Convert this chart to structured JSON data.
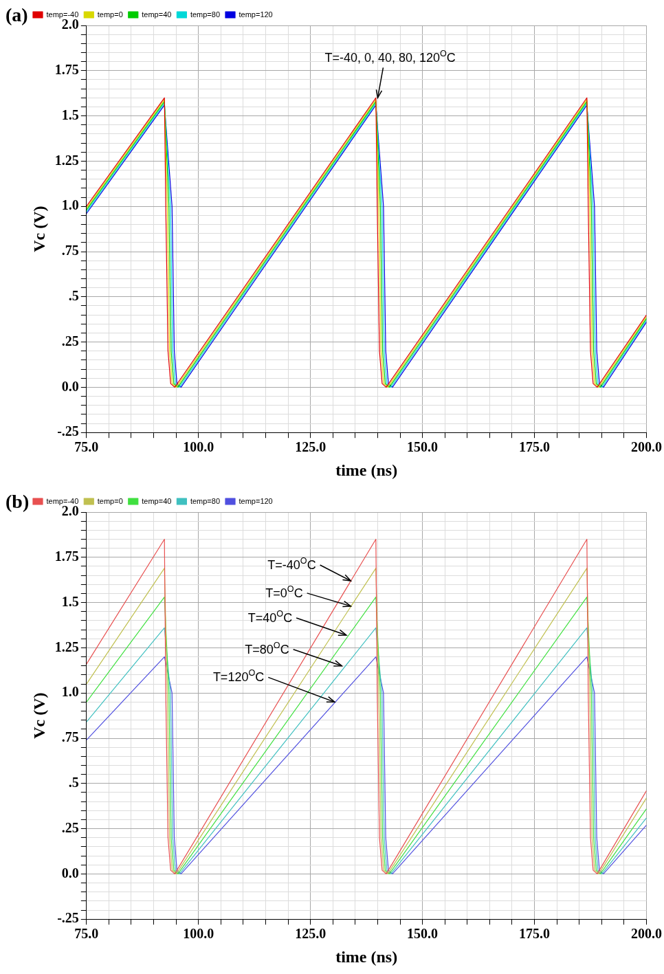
{
  "chart_data": [
    {
      "type": "line",
      "title": "(a)",
      "xlabel": "time (ns)",
      "ylabel": "Vc (V)",
      "legend": "top left",
      "grid": true,
      "marker": "none",
      "line_style": "solid",
      "series": [
        {
          "name": "temp=-40",
          "color": "#e00000",
          "x": [
            75,
            92.4,
            92.7,
            93.2,
            93.8,
            94.7,
            139.6,
            139.9,
            140.4,
            141,
            141.9,
            186.7,
            187,
            187.5,
            188.1,
            189,
            200
          ],
          "values": [
            1.0,
            1.6,
            1.0,
            0.2,
            0.02,
            0,
            1.6,
            1.0,
            0.2,
            0.02,
            0,
            1.6,
            1.0,
            0.2,
            0.02,
            0,
            0.4
          ]
        },
        {
          "name": "temp=0",
          "color": "#d8d800",
          "x": [
            75,
            92.4,
            93.05,
            93.55,
            94.15,
            95.05,
            139.6,
            140.25,
            140.75,
            141.35,
            142.25,
            186.7,
            187.35,
            187.85,
            188.45,
            189.35,
            200
          ],
          "values": [
            0.99,
            1.59,
            1.0,
            0.2,
            0.02,
            0,
            1.59,
            1.0,
            0.2,
            0.02,
            0,
            1.59,
            1.0,
            0.2,
            0.02,
            0,
            0.39
          ]
        },
        {
          "name": "temp=40",
          "color": "#00cc00",
          "x": [
            75,
            92.4,
            93.4,
            93.9,
            94.5,
            95.4,
            139.6,
            140.6,
            141.1,
            141.7,
            142.6,
            186.7,
            187.7,
            188.2,
            188.8,
            189.7,
            200
          ],
          "values": [
            0.98,
            1.58,
            1.0,
            0.2,
            0.02,
            0,
            1.58,
            1.0,
            0.2,
            0.02,
            0,
            1.58,
            1.0,
            0.2,
            0.02,
            0,
            0.38
          ]
        },
        {
          "name": "temp=80",
          "color": "#00d8d8",
          "x": [
            75,
            92.4,
            93.75,
            94.25,
            94.85,
            95.75,
            139.6,
            140.95,
            141.45,
            142.05,
            142.95,
            186.7,
            188.05,
            188.55,
            189.15,
            190.05,
            200
          ],
          "values": [
            0.97,
            1.57,
            1.0,
            0.2,
            0.02,
            0,
            1.57,
            1.0,
            0.2,
            0.02,
            0,
            1.57,
            1.0,
            0.2,
            0.02,
            0,
            0.37
          ]
        },
        {
          "name": "temp=120",
          "color": "#0000e0",
          "x": [
            75,
            92.4,
            94.1,
            94.6,
            95.2,
            96.1,
            139.6,
            141.3,
            141.8,
            142.4,
            143.3,
            186.7,
            188.4,
            188.9,
            189.5,
            190.4,
            200
          ],
          "values": [
            0.96,
            1.56,
            1.0,
            0.2,
            0.02,
            0,
            1.56,
            1.0,
            0.2,
            0.02,
            0,
            1.56,
            1.0,
            0.2,
            0.02,
            0,
            0.36
          ]
        }
      ],
      "annotations": [
        {
          "text": "T=-40, 0, 40, 80, 120$^{O}$C",
          "x": 140,
          "y": 1.6
        }
      ],
      "xlim": [
        75,
        200
      ],
      "xticks": [
        {
          "value": 75,
          "label": "75.0"
        },
        {
          "value": 80,
          "label": null
        },
        {
          "value": 85,
          "label": null
        },
        {
          "value": 90,
          "label": null
        },
        {
          "value": 95,
          "label": null
        },
        {
          "value": 100,
          "label": "100.0"
        },
        {
          "value": 105,
          "label": null
        },
        {
          "value": 110,
          "label": null
        },
        {
          "value": 115,
          "label": null
        },
        {
          "value": 120,
          "label": null
        },
        {
          "value": 125,
          "label": "125.0"
        },
        {
          "value": 130,
          "label": null
        },
        {
          "value": 135,
          "label": null
        },
        {
          "value": 140,
          "label": null
        },
        {
          "value": 145,
          "label": null
        },
        {
          "value": 150,
          "label": "150.0"
        },
        {
          "value": 155,
          "label": null
        },
        {
          "value": 160,
          "label": null
        },
        {
          "value": 165,
          "label": null
        },
        {
          "value": 170,
          "label": null
        },
        {
          "value": 175,
          "label": "175.0"
        },
        {
          "value": 180,
          "label": null
        },
        {
          "value": 185,
          "label": null
        },
        {
          "value": 190,
          "label": null
        },
        {
          "value": 195,
          "label": null
        },
        {
          "value": 200,
          "label": "200.0"
        }
      ],
      "ylim": [
        -0.25,
        2
      ],
      "yticks": [
        {
          "value": -0.25,
          "label": "-.25"
        },
        {
          "value": -0.2,
          "label": null
        },
        {
          "value": -0.15,
          "label": null
        },
        {
          "value": -0.1,
          "label": null
        },
        {
          "value": -0.05,
          "label": null
        },
        {
          "value": 0,
          "label": "0.0"
        },
        {
          "value": 0.05,
          "label": null
        },
        {
          "value": 0.1,
          "label": null
        },
        {
          "value": 0.15,
          "label": null
        },
        {
          "value": 0.2,
          "label": null
        },
        {
          "value": 0.25,
          "label": ".25"
        },
        {
          "value": 0.3,
          "label": null
        },
        {
          "value": 0.35,
          "label": null
        },
        {
          "value": 0.4,
          "label": null
        },
        {
          "value": 0.45,
          "label": null
        },
        {
          "value": 0.5,
          "label": ".5"
        },
        {
          "value": 0.55,
          "label": null
        },
        {
          "value": 0.6,
          "label": null
        },
        {
          "value": 0.65,
          "label": null
        },
        {
          "value": 0.7,
          "label": null
        },
        {
          "value": 0.75,
          "label": ".75"
        },
        {
          "value": 0.8,
          "label": null
        },
        {
          "value": 0.85,
          "label": null
        },
        {
          "value": 0.9,
          "label": null
        },
        {
          "value": 0.95,
          "label": null
        },
        {
          "value": 1,
          "label": "1.0"
        },
        {
          "value": 1.05,
          "label": null
        },
        {
          "value": 1.1,
          "label": null
        },
        {
          "value": 1.15,
          "label": null
        },
        {
          "value": 1.2,
          "label": null
        },
        {
          "value": 1.25,
          "label": "1.25"
        },
        {
          "value": 1.3,
          "label": null
        },
        {
          "value": 1.35,
          "label": null
        },
        {
          "value": 1.4,
          "label": null
        },
        {
          "value": 1.45,
          "label": null
        },
        {
          "value": 1.5,
          "label": "1.5"
        },
        {
          "value": 1.55,
          "label": null
        },
        {
          "value": 1.6,
          "label": null
        },
        {
          "value": 1.65,
          "label": null
        },
        {
          "value": 1.7,
          "label": null
        },
        {
          "value": 1.75,
          "label": "1.75"
        },
        {
          "value": 1.8,
          "label": null
        },
        {
          "value": 1.85,
          "label": null
        },
        {
          "value": 1.9,
          "label": null
        },
        {
          "value": 1.95,
          "label": null
        },
        {
          "value": 2,
          "label": "2.0"
        }
      ]
    },
    {
      "type": "line",
      "title": "(b)",
      "xlabel": "time (ns)",
      "ylabel": "Vc (V)",
      "legend": "top left",
      "grid": true,
      "marker": "none",
      "line_style": "solid",
      "series": [
        {
          "name": "temp=-40",
          "color": "#e85050",
          "x": [
            75,
            92.4,
            92.7,
            93.2,
            93.8,
            94.7,
            139.6,
            139.9,
            140.4,
            141,
            141.9,
            186.7,
            187,
            187.5,
            188.1,
            189,
            200
          ],
          "values": [
            1.16,
            1.85,
            1.0,
            0.2,
            0.02,
            0,
            1.85,
            1.0,
            0.2,
            0.02,
            0,
            1.85,
            1.0,
            0.2,
            0.02,
            0,
            0.46
          ]
        },
        {
          "name": "temp=0",
          "color": "#c0c050",
          "x": [
            75,
            92.4,
            93.05,
            93.55,
            94.15,
            95.05,
            139.6,
            140.25,
            140.75,
            141.35,
            142.25,
            186.7,
            187.35,
            187.85,
            188.45,
            189.35,
            200
          ],
          "values": [
            1.05,
            1.69,
            1.0,
            0.2,
            0.02,
            0,
            1.69,
            1.0,
            0.2,
            0.02,
            0,
            1.69,
            1.0,
            0.2,
            0.02,
            0,
            0.42
          ]
        },
        {
          "name": "temp=40",
          "color": "#40e040",
          "x": [
            75,
            92.4,
            93.4,
            93.9,
            94.5,
            95.4,
            139.6,
            140.6,
            141.1,
            141.7,
            142.6,
            186.7,
            187.7,
            188.2,
            188.8,
            189.7,
            200
          ],
          "values": [
            0.95,
            1.53,
            1.0,
            0.2,
            0.02,
            0,
            1.53,
            1.0,
            0.2,
            0.02,
            0,
            1.53,
            1.0,
            0.2,
            0.02,
            0,
            0.36
          ]
        },
        {
          "name": "temp=80",
          "color": "#40c0c0",
          "x": [
            75,
            92.4,
            93.75,
            94.25,
            94.85,
            95.75,
            139.6,
            140.95,
            141.45,
            142.05,
            142.95,
            186.7,
            188.05,
            188.55,
            189.15,
            190.05,
            200
          ],
          "values": [
            0.84,
            1.36,
            1.0,
            0.2,
            0.02,
            0,
            1.36,
            1.0,
            0.2,
            0.02,
            0,
            1.36,
            1.0,
            0.2,
            0.02,
            0,
            0.31
          ]
        },
        {
          "name": "temp=120",
          "color": "#5050e0",
          "x": [
            75,
            92.4,
            94.1,
            94.6,
            95.2,
            96.1,
            139.6,
            141.3,
            141.8,
            142.4,
            143.3,
            186.7,
            188.4,
            188.9,
            189.5,
            190.4,
            200
          ],
          "values": [
            0.74,
            1.2,
            1.0,
            0.2,
            0.02,
            0,
            1.2,
            1.0,
            0.2,
            0.02,
            0,
            1.2,
            1.0,
            0.2,
            0.02,
            0,
            0.27
          ]
        }
      ],
      "annotations": [
        {
          "text": "T=-40$^{O}$C",
          "x": 134,
          "y": 1.62
        },
        {
          "text": "T=0$^{O}$C",
          "x": 134,
          "y": 1.48
        },
        {
          "text": "T=40$^{O}$C",
          "x": 133,
          "y": 1.32
        },
        {
          "text": "T=80$^{O}$C",
          "x": 132,
          "y": 1.15
        },
        {
          "text": "T=120$^{O}$C",
          "x": 130.4,
          "y": 0.95
        }
      ],
      "xlim": [
        75,
        200
      ],
      "xticks": [
        {
          "value": 75,
          "label": "75.0"
        },
        {
          "value": 80,
          "label": null
        },
        {
          "value": 85,
          "label": null
        },
        {
          "value": 90,
          "label": null
        },
        {
          "value": 95,
          "label": null
        },
        {
          "value": 100,
          "label": "100.0"
        },
        {
          "value": 105,
          "label": null
        },
        {
          "value": 110,
          "label": null
        },
        {
          "value": 115,
          "label": null
        },
        {
          "value": 120,
          "label": null
        },
        {
          "value": 125,
          "label": "125.0"
        },
        {
          "value": 130,
          "label": null
        },
        {
          "value": 135,
          "label": null
        },
        {
          "value": 140,
          "label": null
        },
        {
          "value": 145,
          "label": null
        },
        {
          "value": 150,
          "label": "150.0"
        },
        {
          "value": 155,
          "label": null
        },
        {
          "value": 160,
          "label": null
        },
        {
          "value": 165,
          "label": null
        },
        {
          "value": 170,
          "label": null
        },
        {
          "value": 175,
          "label": "175.0"
        },
        {
          "value": 180,
          "label": null
        },
        {
          "value": 185,
          "label": null
        },
        {
          "value": 190,
          "label": null
        },
        {
          "value": 195,
          "label": null
        },
        {
          "value": 200,
          "label": "200.0"
        }
      ],
      "ylim": [
        -0.25,
        2
      ],
      "yticks": [
        {
          "value": -0.25,
          "label": "-.25"
        },
        {
          "value": -0.2,
          "label": null
        },
        {
          "value": -0.15,
          "label": null
        },
        {
          "value": -0.1,
          "label": null
        },
        {
          "value": -0.05,
          "label": null
        },
        {
          "value": 0,
          "label": "0.0"
        },
        {
          "value": 0.05,
          "label": null
        },
        {
          "value": 0.1,
          "label": null
        },
        {
          "value": 0.15,
          "label": null
        },
        {
          "value": 0.2,
          "label": null
        },
        {
          "value": 0.25,
          "label": ".25"
        },
        {
          "value": 0.3,
          "label": null
        },
        {
          "value": 0.35,
          "label": null
        },
        {
          "value": 0.4,
          "label": null
        },
        {
          "value": 0.45,
          "label": null
        },
        {
          "value": 0.5,
          "label": ".5"
        },
        {
          "value": 0.55,
          "label": null
        },
        {
          "value": 0.6,
          "label": null
        },
        {
          "value": 0.65,
          "label": null
        },
        {
          "value": 0.7,
          "label": null
        },
        {
          "value": 0.75,
          "label": ".75"
        },
        {
          "value": 0.8,
          "label": null
        },
        {
          "value": 0.85,
          "label": null
        },
        {
          "value": 0.9,
          "label": null
        },
        {
          "value": 0.95,
          "label": null
        },
        {
          "value": 1,
          "label": "1.0"
        },
        {
          "value": 1.05,
          "label": null
        },
        {
          "value": 1.1,
          "label": null
        },
        {
          "value": 1.15,
          "label": null
        },
        {
          "value": 1.2,
          "label": null
        },
        {
          "value": 1.25,
          "label": "1.25"
        },
        {
          "value": 1.3,
          "label": null
        },
        {
          "value": 1.35,
          "label": null
        },
        {
          "value": 1.4,
          "label": null
        },
        {
          "value": 1.45,
          "label": null
        },
        {
          "value": 1.5,
          "label": "1.5"
        },
        {
          "value": 1.55,
          "label": null
        },
        {
          "value": 1.6,
          "label": null
        },
        {
          "value": 1.65,
          "label": null
        },
        {
          "value": 1.7,
          "label": null
        },
        {
          "value": 1.75,
          "label": "1.75"
        },
        {
          "value": 1.8,
          "label": null
        },
        {
          "value": 1.85,
          "label": null
        },
        {
          "value": 1.9,
          "label": null
        },
        {
          "value": 1.95,
          "label": null
        },
        {
          "value": 2,
          "label": "2.0"
        }
      ]
    }
  ]
}
